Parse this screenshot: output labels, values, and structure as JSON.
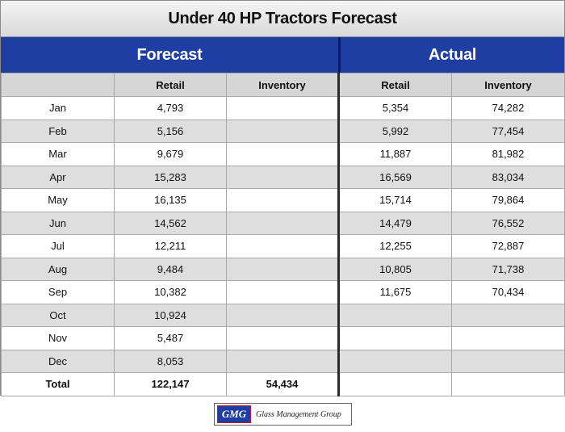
{
  "title": "Under 40 HP Tractors Forecast",
  "groups": {
    "forecast": "Forecast",
    "actual": "Actual"
  },
  "columns": [
    "",
    "Retail",
    "Inventory",
    "Retail",
    "Inventory"
  ],
  "rows": [
    {
      "month": "Jan",
      "fc_retail": "4,793",
      "fc_inventory": "",
      "act_retail": "5,354",
      "act_inventory": "74,282"
    },
    {
      "month": "Feb",
      "fc_retail": "5,156",
      "fc_inventory": "",
      "act_retail": "5,992",
      "act_inventory": "77,454"
    },
    {
      "month": "Mar",
      "fc_retail": "9,679",
      "fc_inventory": "",
      "act_retail": "11,887",
      "act_inventory": "81,982"
    },
    {
      "month": "Apr",
      "fc_retail": "15,283",
      "fc_inventory": "",
      "act_retail": "16,569",
      "act_inventory": "83,034"
    },
    {
      "month": "May",
      "fc_retail": "16,135",
      "fc_inventory": "",
      "act_retail": "15,714",
      "act_inventory": "79,864"
    },
    {
      "month": "Jun",
      "fc_retail": "14,562",
      "fc_inventory": "",
      "act_retail": "14,479",
      "act_inventory": "76,552"
    },
    {
      "month": "Jul",
      "fc_retail": "12,211",
      "fc_inventory": "",
      "act_retail": "12,255",
      "act_inventory": "72,887"
    },
    {
      "month": "Aug",
      "fc_retail": "9,484",
      "fc_inventory": "",
      "act_retail": "10,805",
      "act_inventory": "71,738"
    },
    {
      "month": "Sep",
      "fc_retail": "10,382",
      "fc_inventory": "",
      "act_retail": "11,675",
      "act_inventory": "70,434"
    },
    {
      "month": "Oct",
      "fc_retail": "10,924",
      "fc_inventory": "",
      "act_retail": "",
      "act_inventory": ""
    },
    {
      "month": "Nov",
      "fc_retail": "5,487",
      "fc_inventory": "",
      "act_retail": "",
      "act_inventory": ""
    },
    {
      "month": "Dec",
      "fc_retail": "8,053",
      "fc_inventory": "",
      "act_retail": "",
      "act_inventory": ""
    }
  ],
  "total": {
    "label": "Total",
    "fc_retail": "122,147",
    "fc_inventory": "54,434",
    "act_retail": "",
    "act_inventory": ""
  },
  "logo": {
    "mark": "GMG",
    "name": "Glass Management Group"
  },
  "colors": {
    "band": "#1f3ea3",
    "forecast_text": "#e10000",
    "stripe": "#dedede"
  }
}
